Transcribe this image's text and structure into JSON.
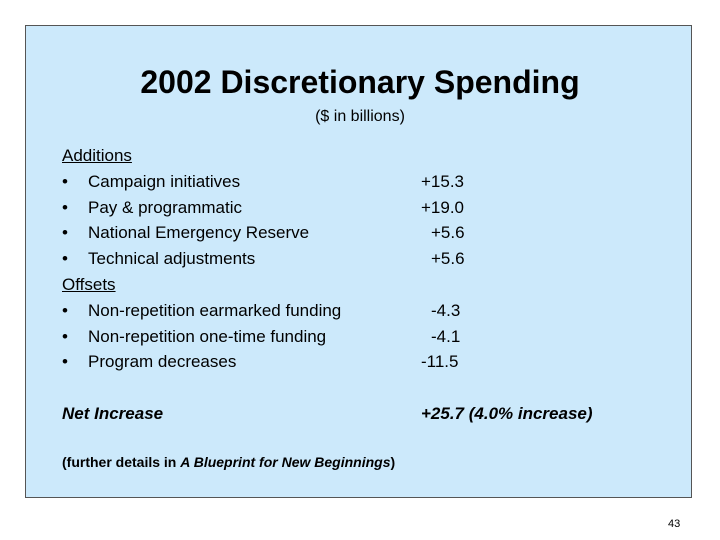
{
  "slide": {
    "title": "2002 Discretionary Spending",
    "subtitle": "($ in billions)",
    "sections": [
      {
        "heading": "Additions",
        "items": [
          {
            "label": "Campaign initiatives",
            "value": "+15.3"
          },
          {
            "label": "Pay & programmatic",
            "value": "+19.0"
          },
          {
            "label": "National Emergency Reserve",
            "value": "+5.6"
          },
          {
            "label": "Technical adjustments",
            "value": "+5.6"
          }
        ]
      },
      {
        "heading": "Offsets",
        "items": [
          {
            "label": "Non-repetition earmarked funding",
            "value": "-4.3"
          },
          {
            "label": "Non-repetition one-time funding",
            "value": "-4.1"
          },
          {
            "label": "Program decreases",
            "value": "-11.5"
          }
        ]
      }
    ],
    "net": {
      "label": "Net Increase",
      "value": "+25.7 (4.0% increase)"
    },
    "footnote": {
      "prefix": "(further details in ",
      "title": "A Blueprint for New Beginnings",
      "suffix": ")"
    },
    "page_number": "43"
  }
}
